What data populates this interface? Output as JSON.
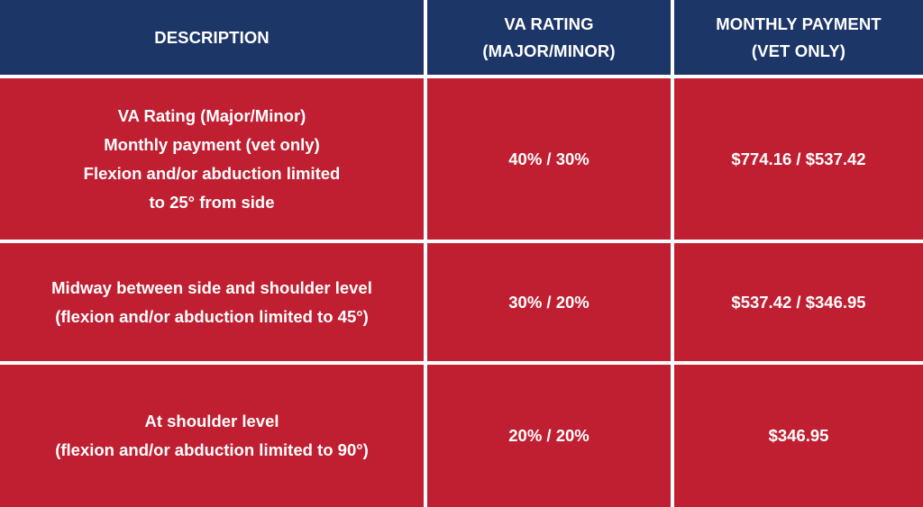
{
  "header": {
    "description": "DESCRIPTION",
    "va_rating": "VA RATING\n(MAJOR/MINOR)",
    "monthly_payment": "MONTHLY PAYMENT\n(VET ONLY)"
  },
  "rows": [
    {
      "description": "VA Rating (Major/Minor)\nMonthly payment (vet only)\nFlexion and/or abduction limited\nto 25° from side",
      "va_rating": "40% / 30%",
      "monthly_payment": "$774.16 / $537.42"
    },
    {
      "description": "Midway between side and shoulder level\n(flexion and/or abduction limited to 45°)",
      "va_rating": "30% / 20%",
      "monthly_payment": "$537.42 / $346.95"
    },
    {
      "description": "At shoulder level\n(flexion and/or abduction limited to 90°)",
      "va_rating": "20% / 20%",
      "monthly_payment": "$346.95"
    }
  ],
  "colors": {
    "header_bg": "#1c3668",
    "row_bg": "#c01f31",
    "text": "#ffffff",
    "divider": "#ffffff"
  }
}
